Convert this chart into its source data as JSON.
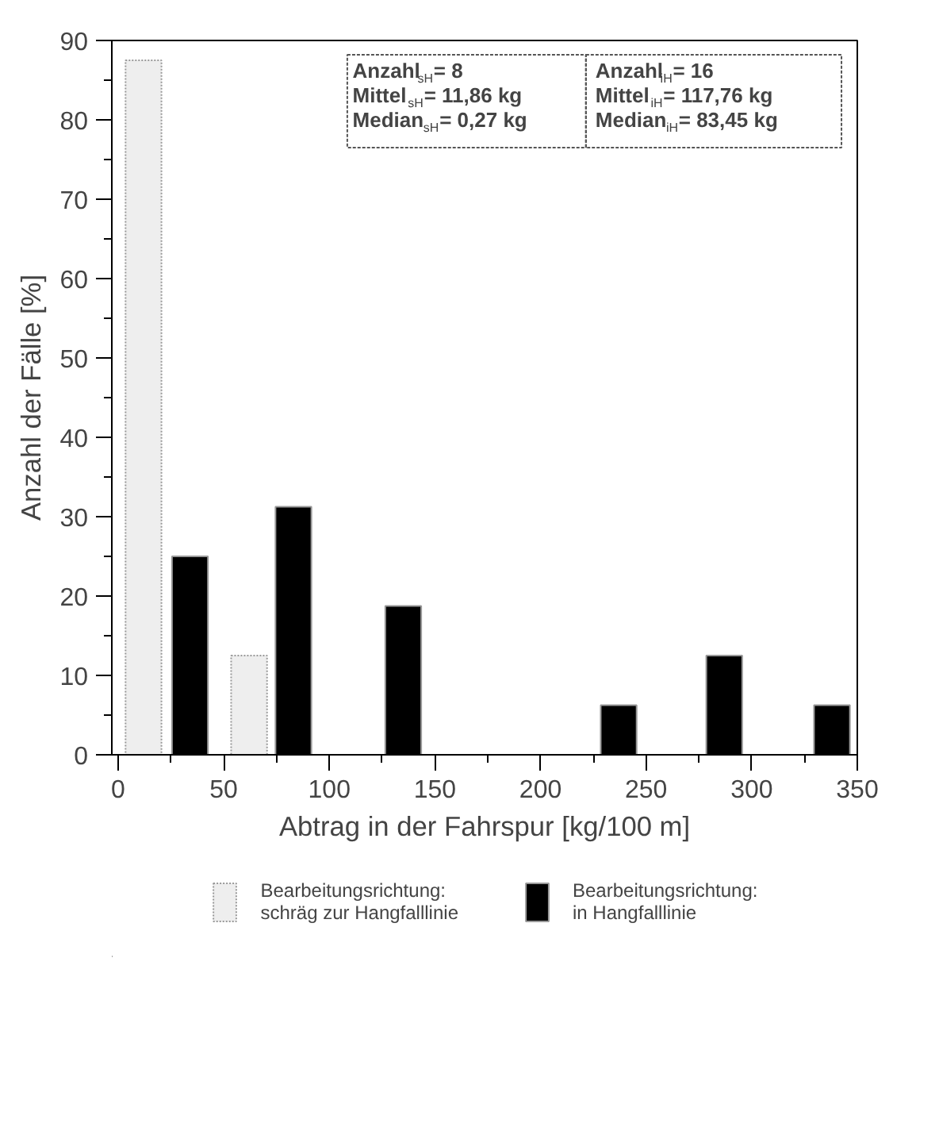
{
  "chart_data": {
    "type": "bar",
    "xlabel": "Abtrag in der Fahrspur [kg/100 m]",
    "ylabel": "Anzahl der Fälle [%]",
    "series": [
      {
        "name": "Bearbeitungsrichtung:\nschräg zur Hangfalllinie",
        "color": "#eeeeee",
        "x": [
          12,
          62
        ],
        "values": [
          87.5,
          12.5
        ]
      },
      {
        "name": "Bearbeitungsrichtung:\nin Hangfalllinie",
        "color": "#000000",
        "x": [
          34,
          83,
          135,
          237,
          287,
          338
        ],
        "values": [
          25,
          31.25,
          18.75,
          6.25,
          12.5,
          6.25
        ]
      }
    ],
    "xlim": [
      -3,
      350
    ],
    "ylim": [
      0,
      90
    ],
    "xticks": [
      0,
      50,
      100,
      150,
      200,
      250,
      300,
      350
    ],
    "yticks": [
      0,
      10,
      20,
      30,
      40,
      50,
      60,
      70,
      80,
      90
    ],
    "annotations": [
      "Anzahl$_{sH}$= 8",
      "Mittel$_{sH}$= 11,86 kg",
      "Median$_{sH}$= 0,27 kg",
      "Anzahl$_{iH}$= 16",
      "Mittel$_{iH}$= 117,76 kg",
      "Median$_{iH}$= 83,45 kg"
    ],
    "legend": "bottom",
    "grid": false
  }
}
